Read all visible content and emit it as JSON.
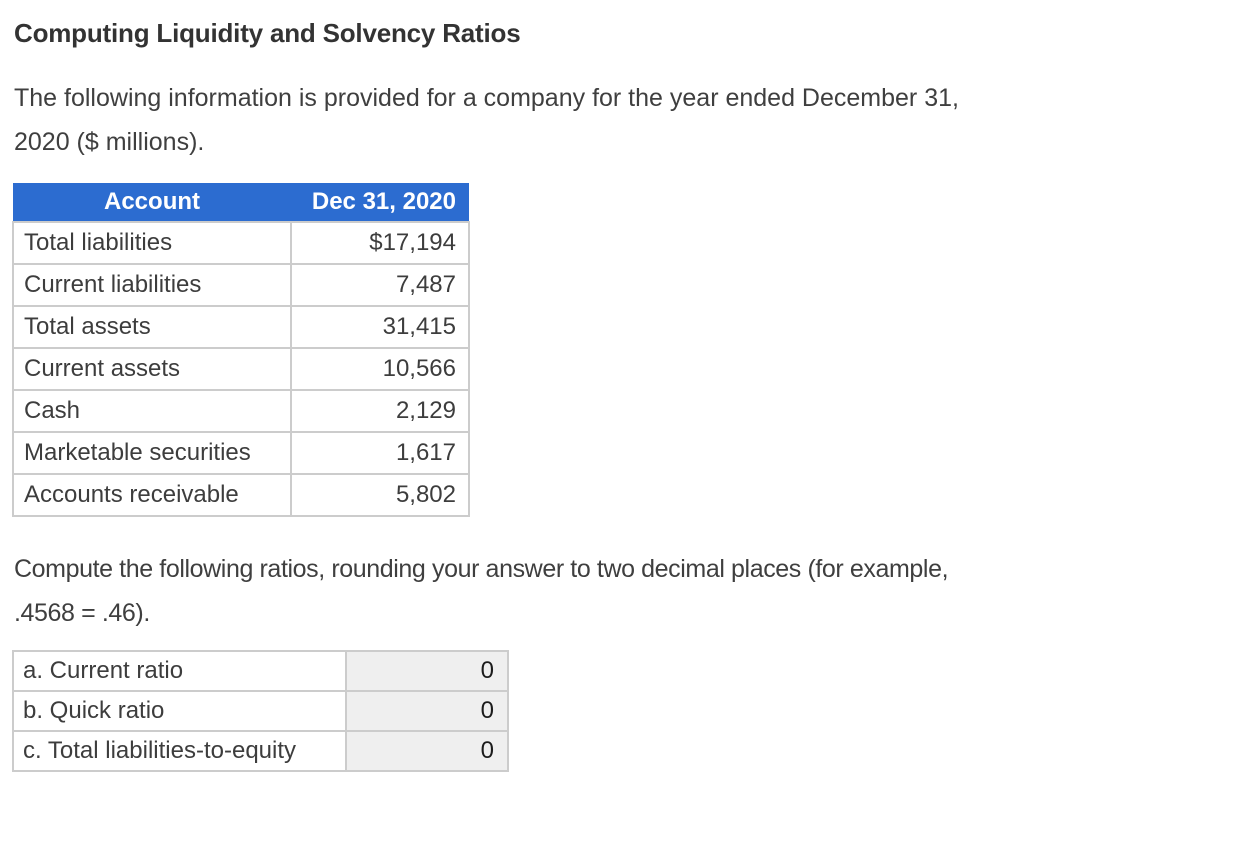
{
  "page": {
    "title": "Computing Liquidity and Solvency Ratios",
    "intro_lines": [
      "The following information is provided for a company for the year ended December 31,",
      "2020 ($ millions)."
    ],
    "instructions_lines": [
      "Compute the following ratios, rounding your answer to two decimal places (for example,",
      ".4568 = .46)."
    ]
  },
  "colors": {
    "header_blue": "#2c6cd0",
    "border_gray": "#cccccc",
    "answer_cell_bg": "#efefef"
  },
  "accounts_table": {
    "headers": [
      "Account",
      "Dec 31, 2020"
    ],
    "rows": [
      {
        "label": "Total liabilities",
        "value": "$17,194"
      },
      {
        "label": "Current liabilities",
        "value": "7,487"
      },
      {
        "label": "Total assets",
        "value": "31,415"
      },
      {
        "label": "Current assets",
        "value": "10,566"
      },
      {
        "label": "Cash",
        "value": "2,129"
      },
      {
        "label": "Marketable securities",
        "value": "1,617"
      },
      {
        "label": "Accounts receivable",
        "value": "5,802"
      }
    ]
  },
  "ratios_table": {
    "rows": [
      {
        "label": "a. Current ratio",
        "value": "0"
      },
      {
        "label": "b. Quick ratio",
        "value": "0"
      },
      {
        "label": "c. Total liabilities-to-equity",
        "value": "0"
      }
    ]
  }
}
